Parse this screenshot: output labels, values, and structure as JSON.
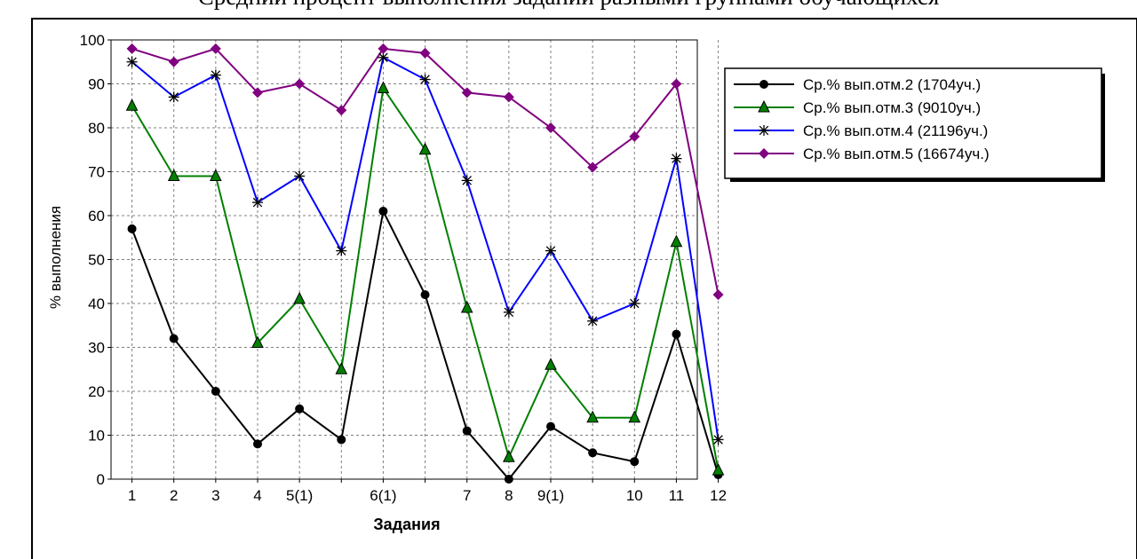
{
  "title": "Средний процент выполнения заданий разными группами обучающихся",
  "chart_data": {
    "type": "line",
    "xlabel": "Задания",
    "ylabel": "% выполнения",
    "ylim": [
      0,
      100
    ],
    "yticks": [
      0,
      10,
      20,
      30,
      40,
      50,
      60,
      70,
      80,
      90,
      100
    ],
    "grid": true,
    "legend_position": "top-right",
    "x_tick_labels": [
      "1",
      "2",
      "3",
      "4",
      "5(1)",
      "",
      "6(1)",
      "",
      "7",
      "8",
      "9(1)",
      "",
      "10",
      "11",
      "12"
    ],
    "series": [
      {
        "name": "Ср.% вып.отм.2 (1704уч.)",
        "color": "#000000",
        "marker": "circle",
        "values": [
          57,
          32,
          20,
          8,
          16,
          9,
          61,
          42,
          11,
          0,
          12,
          6,
          4,
          33,
          1
        ]
      },
      {
        "name": "Ср.% вып.отм.3 (9010уч.)",
        "color": "#008000",
        "marker": "triangle",
        "values": [
          85,
          69,
          69,
          31,
          41,
          25,
          89,
          75,
          39,
          5,
          26,
          14,
          14,
          54,
          2
        ]
      },
      {
        "name": "Ср.% вып.отм.4 (21196уч.)",
        "color": "#0000ff",
        "marker": "asterisk",
        "values": [
          95,
          87,
          92,
          63,
          69,
          52,
          96,
          91,
          68,
          38,
          52,
          36,
          40,
          73,
          9
        ]
      },
      {
        "name": "Ср.% вып.отм.5 (16674уч.)",
        "color": "#800080",
        "marker": "diamond",
        "values": [
          98,
          95,
          98,
          88,
          90,
          84,
          98,
          97,
          88,
          87,
          80,
          71,
          78,
          90,
          42
        ]
      }
    ]
  }
}
